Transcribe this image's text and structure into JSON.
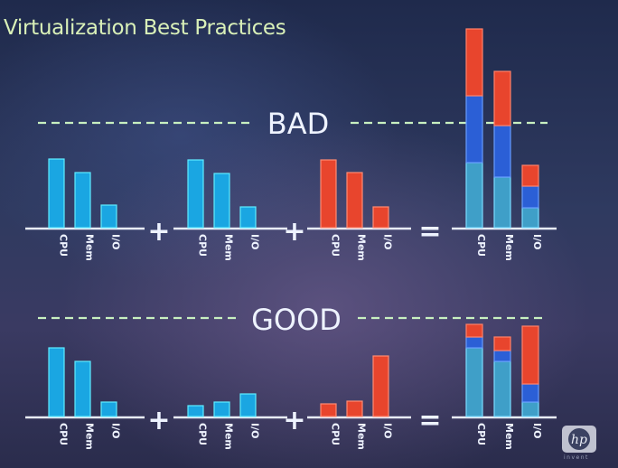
{
  "title": "Virtualization Best Practices",
  "colors": {
    "blue": "#1aa6e2",
    "blue_dark": "#2b5fd6",
    "teal": "#3f9fc8",
    "red": "#e8452d",
    "white": "#eef3ff",
    "green_dash": "#c8f0c0"
  },
  "brand": {
    "logo_text": "hp",
    "caption": "invent"
  },
  "chart_data": [
    {
      "type": "bar",
      "section": "BAD",
      "categories": [
        "CPU",
        "Mem",
        "I/O"
      ],
      "operators": [
        "+",
        "+",
        "="
      ],
      "groups": [
        {
          "color": "blue",
          "values": [
            76,
            61,
            25
          ]
        },
        {
          "color": "blue",
          "values": [
            75,
            60,
            23
          ]
        },
        {
          "color": "red",
          "values": [
            75,
            61,
            23
          ]
        }
      ],
      "combined": {
        "stack_colors": [
          "teal",
          "blue_dark",
          "red"
        ],
        "values": [
          [
            72,
            74,
            74
          ],
          [
            56,
            57,
            60
          ],
          [
            22,
            24,
            23
          ]
        ]
      }
    },
    {
      "type": "bar",
      "section": "GOOD",
      "categories": [
        "CPU",
        "Mem",
        "I/O"
      ],
      "operators": [
        "+",
        "+",
        "="
      ],
      "groups": [
        {
          "color": "blue",
          "values": [
            76,
            61,
            16
          ]
        },
        {
          "color": "blue",
          "values": [
            12,
            16,
            25
          ]
        },
        {
          "color": "red",
          "values": [
            14,
            17,
            67
          ]
        }
      ],
      "combined": {
        "stack_colors": [
          "teal",
          "blue_dark",
          "red"
        ],
        "values": [
          [
            76,
            12,
            14
          ],
          [
            61,
            12,
            15
          ],
          [
            16,
            20,
            64
          ]
        ]
      }
    }
  ]
}
